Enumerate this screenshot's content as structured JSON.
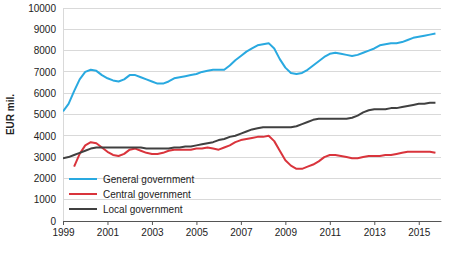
{
  "chart_data": {
    "type": "line",
    "y_label": "EUR mil.",
    "x": [
      1999,
      1999.25,
      1999.5,
      1999.75,
      2000,
      2000.25,
      2000.5,
      2000.75,
      2001,
      2001.25,
      2001.5,
      2001.75,
      2002,
      2002.25,
      2002.5,
      2002.75,
      2003,
      2003.25,
      2003.5,
      2003.75,
      2004,
      2004.25,
      2004.5,
      2004.75,
      2005,
      2005.25,
      2005.5,
      2005.75,
      2006,
      2006.25,
      2006.5,
      2006.75,
      2007,
      2007.25,
      2007.5,
      2007.75,
      2008,
      2008.25,
      2008.5,
      2008.75,
      2009,
      2009.25,
      2009.5,
      2009.75,
      2010,
      2010.25,
      2010.5,
      2010.75,
      2011,
      2011.25,
      2011.5,
      2011.75,
      2012,
      2012.25,
      2012.5,
      2012.75,
      2013,
      2013.25,
      2013.5,
      2013.75,
      2014,
      2014.25,
      2014.5,
      2014.75,
      2015,
      2015.25,
      2015.5,
      2015.75
    ],
    "series": [
      {
        "name": "General government",
        "color": "#29a9e0",
        "values": [
          5150,
          5500,
          6100,
          6650,
          7000,
          7100,
          7050,
          6850,
          6700,
          6600,
          6550,
          6650,
          6850,
          6850,
          6750,
          6650,
          6550,
          6450,
          6450,
          6550,
          6700,
          6750,
          6800,
          6850,
          6900,
          7000,
          7050,
          7100,
          7100,
          7100,
          7300,
          7550,
          7750,
          7950,
          8100,
          8250,
          8300,
          8350,
          8100,
          7600,
          7200,
          6950,
          6900,
          6950,
          7100,
          7300,
          7500,
          7700,
          7850,
          7900,
          7850,
          7800,
          7750,
          7800,
          7900,
          8000,
          8100,
          8250,
          8300,
          8350,
          8350,
          8400,
          8500,
          8600,
          8650,
          8700,
          8750,
          8800
        ]
      },
      {
        "name": "Central government",
        "color": "#d9343c",
        "values": [
          null,
          null,
          2550,
          3150,
          3550,
          3700,
          3650,
          3450,
          3250,
          3100,
          3050,
          3150,
          3350,
          3400,
          3300,
          3200,
          3150,
          3150,
          3200,
          3300,
          3350,
          3350,
          3350,
          3350,
          3400,
          3400,
          3450,
          3400,
          3350,
          3450,
          3550,
          3700,
          3800,
          3850,
          3900,
          3950,
          3950,
          4000,
          3750,
          3300,
          2850,
          2600,
          2450,
          2450,
          2550,
          2650,
          2800,
          3000,
          3100,
          3100,
          3050,
          3000,
          2950,
          2950,
          3000,
          3050,
          3050,
          3050,
          3100,
          3100,
          3150,
          3200,
          3250,
          3250,
          3250,
          3250,
          3250,
          3200
        ]
      },
      {
        "name": "Local government",
        "color": "#404040",
        "values": [
          2950,
          3000,
          3100,
          3200,
          3300,
          3400,
          3450,
          3450,
          3450,
          3450,
          3450,
          3450,
          3450,
          3450,
          3450,
          3400,
          3400,
          3400,
          3400,
          3400,
          3450,
          3450,
          3500,
          3500,
          3550,
          3600,
          3650,
          3700,
          3800,
          3850,
          3950,
          4000,
          4100,
          4200,
          4300,
          4350,
          4400,
          4400,
          4400,
          4400,
          4400,
          4400,
          4450,
          4550,
          4650,
          4750,
          4800,
          4800,
          4800,
          4800,
          4800,
          4800,
          4850,
          4950,
          5100,
          5200,
          5250,
          5250,
          5250,
          5300,
          5300,
          5350,
          5400,
          5450,
          5500,
          5500,
          5550,
          5550
        ]
      }
    ],
    "xlim": [
      1999,
      2016
    ],
    "xticks": [
      1999,
      2001,
      2003,
      2005,
      2007,
      2009,
      2011,
      2013,
      2015
    ],
    "ylim": [
      0,
      10000
    ],
    "yticks": [
      0,
      1000,
      2000,
      3000,
      4000,
      5000,
      6000,
      7000,
      8000,
      9000,
      10000
    ],
    "grid": true,
    "legend": "lower left"
  }
}
